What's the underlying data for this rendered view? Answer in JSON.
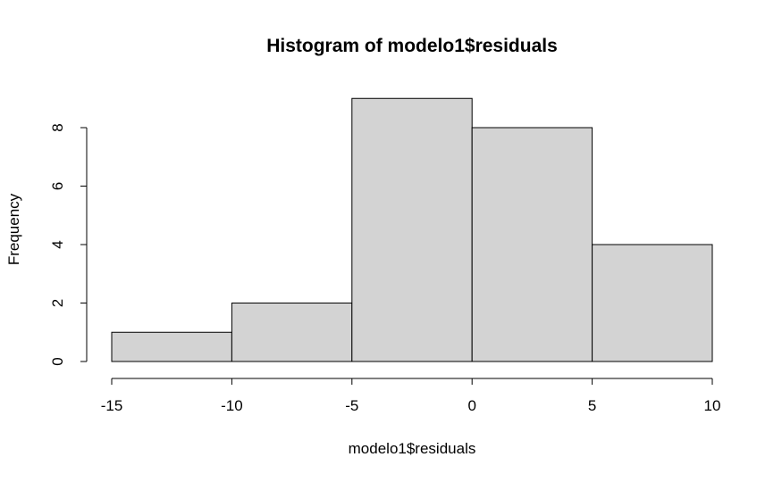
{
  "chart_data": {
    "type": "bar",
    "title": "Histogram of modelo1$residuals",
    "xlabel": "modelo1$residuals",
    "ylabel": "Frequency",
    "bins": [
      {
        "from": -15,
        "to": -10,
        "value": 1
      },
      {
        "from": -10,
        "to": -5,
        "value": 2
      },
      {
        "from": -5,
        "to": 0,
        "value": 9
      },
      {
        "from": 0,
        "to": 5,
        "value": 8
      },
      {
        "from": 5,
        "to": 10,
        "value": 4
      }
    ],
    "xlim": [
      -15,
      10
    ],
    "ylim": [
      0,
      9
    ],
    "x_ticks": [
      -15,
      -10,
      -5,
      0,
      5,
      10
    ],
    "x_tick_labels": [
      "-15",
      "-10",
      "-5",
      "0",
      "5",
      "10"
    ],
    "y_ticks": [
      0,
      2,
      4,
      6,
      8
    ],
    "y_tick_labels": [
      "0",
      "2",
      "4",
      "6",
      "8"
    ],
    "grid": false,
    "bar_color": "#d3d3d3",
    "edge_color": "#000000"
  }
}
